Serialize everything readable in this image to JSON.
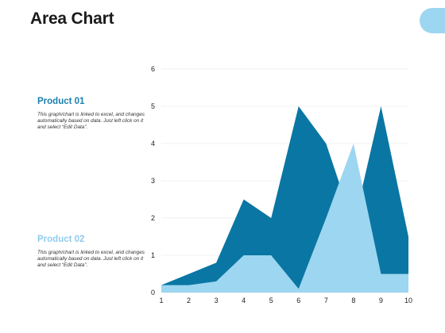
{
  "title": "Area Chart",
  "colors": {
    "series1": "#0a76a3",
    "series2": "#9dd6f0",
    "accent": "#9dd6f0"
  },
  "legend": [
    {
      "name": "Product 01",
      "description": "This graph/chart is linked to excel, and changes automatically based on data. Just left click on it and select “Edit Data”.",
      "color": "#1a7fae"
    },
    {
      "name": "Product 02",
      "description": "This graph/chart is linked to excel, and changes automatically based on data. Just left click on it and select “Edit Data”.",
      "color": "#8ecdee"
    }
  ],
  "chart_data": {
    "type": "area",
    "title": "",
    "xlabel": "",
    "ylabel": "",
    "x": [
      1,
      2,
      3,
      4,
      5,
      6,
      7,
      8,
      9,
      10
    ],
    "ylim": [
      0,
      6
    ],
    "yticks": [
      0,
      1,
      2,
      3,
      4,
      5,
      6
    ],
    "grid": true,
    "series": [
      {
        "name": "Product 01",
        "values": [
          0.2,
          0.5,
          0.8,
          2.5,
          2.0,
          5.0,
          4.0,
          1.8,
          5.0,
          1.5
        ]
      },
      {
        "name": "Product 02",
        "values": [
          0.2,
          0.2,
          0.3,
          1.0,
          1.0,
          0.1,
          2.0,
          4.0,
          0.5,
          0.5
        ]
      }
    ]
  }
}
